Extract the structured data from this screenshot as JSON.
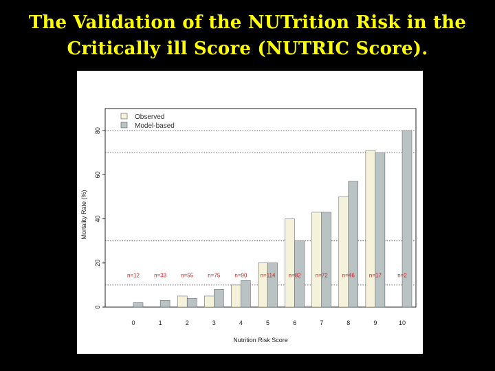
{
  "slide": {
    "title_line1": "The Validation of the NUTrition Risk in the",
    "title_line2": "Critically ill Score (NUTRIC Score)."
  },
  "colors": {
    "background": "#000000",
    "title": "#ffff00",
    "observed": "#f5f2dc",
    "model_based": "#b9c3c4",
    "n_label": "#cc2222"
  },
  "chart_data": {
    "type": "bar",
    "title": "",
    "xlabel": "Nutrition Risk Score",
    "ylabel": "Mortality Rate (%)",
    "ylim": [
      0,
      90
    ],
    "yticks": [
      0,
      20,
      40,
      60,
      80
    ],
    "categories": [
      "0",
      "1",
      "2",
      "3",
      "4",
      "5",
      "6",
      "7",
      "8",
      "9",
      "10"
    ],
    "series": [
      {
        "name": "Observed",
        "values": [
          0,
          0,
          5,
          5,
          10,
          20,
          40,
          43,
          50,
          71,
          0
        ]
      },
      {
        "name": "Model-based",
        "values": [
          2,
          3,
          4,
          8,
          12,
          20,
          30,
          43,
          57,
          70,
          80
        ]
      }
    ],
    "n_labels": [
      "n=12",
      "n=33",
      "n=55",
      "n=75",
      "n=90",
      "n=114",
      "n=82",
      "n=72",
      "n=46",
      "n=17",
      "n=2"
    ],
    "reference_lines": [
      10,
      30,
      70,
      80
    ],
    "legend_position": "top-left",
    "grid": false
  }
}
